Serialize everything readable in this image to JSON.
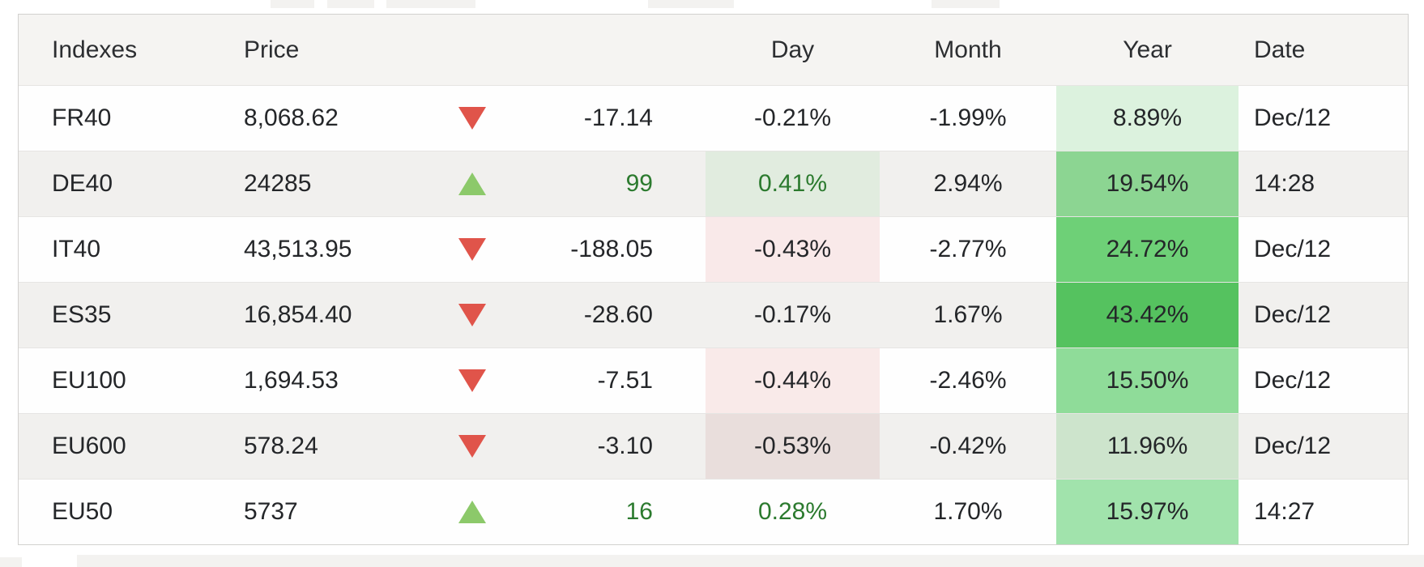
{
  "table": {
    "columns": {
      "indexes": "Indexes",
      "price": "Price",
      "day": "Day",
      "month": "Month",
      "year": "Year",
      "date": "Date"
    },
    "rows": [
      {
        "index": "FR40",
        "price": "8,068.62",
        "trend": "down",
        "change": "-17.14",
        "day": "-0.21%",
        "month": "-1.99%",
        "year": "8.89%",
        "date": "Dec/12",
        "day_bg": "",
        "year_bg": "#dcf2de"
      },
      {
        "index": "DE40",
        "price": "24285",
        "trend": "up",
        "change": "99",
        "day": "0.41%",
        "month": "2.94%",
        "year": "19.54%",
        "date": "14:28",
        "day_bg": "#e1ecdf",
        "year_bg": "#8cd592"
      },
      {
        "index": "IT40",
        "price": "43,513.95",
        "trend": "down",
        "change": "-188.05",
        "day": "-0.43%",
        "month": "-2.77%",
        "year": "24.72%",
        "date": "Dec/12",
        "day_bg": "#f9e9e9",
        "year_bg": "#6ed077"
      },
      {
        "index": "ES35",
        "price": "16,854.40",
        "trend": "down",
        "change": "-28.60",
        "day": "-0.17%",
        "month": "1.67%",
        "year": "43.42%",
        "date": "Dec/12",
        "day_bg": "",
        "year_bg": "#55c25f"
      },
      {
        "index": "EU100",
        "price": "1,694.53",
        "trend": "down",
        "change": "-7.51",
        "day": "-0.44%",
        "month": "-2.46%",
        "year": "15.50%",
        "date": "Dec/12",
        "day_bg": "#f9eae9",
        "year_bg": "#8fdc99"
      },
      {
        "index": "EU600",
        "price": "578.24",
        "trend": "down",
        "change": "-3.10",
        "day": "-0.53%",
        "month": "-0.42%",
        "year": "11.96%",
        "date": "Dec/12",
        "day_bg": "#e9dedc",
        "year_bg": "#cde4cc"
      },
      {
        "index": "EU50",
        "price": "5737",
        "trend": "up",
        "change": "16",
        "day": "0.28%",
        "month": "1.70%",
        "year": "15.97%",
        "date": "14:27",
        "day_bg": "",
        "year_bg": "#a1e3ac"
      }
    ]
  },
  "colors": {
    "up_arrow": "#8cc96a",
    "down_arrow": "#e0544a",
    "positive_text": "#2b7a2e",
    "row_shaded": "#f1f0ee",
    "header_bg": "#f5f4f2"
  }
}
